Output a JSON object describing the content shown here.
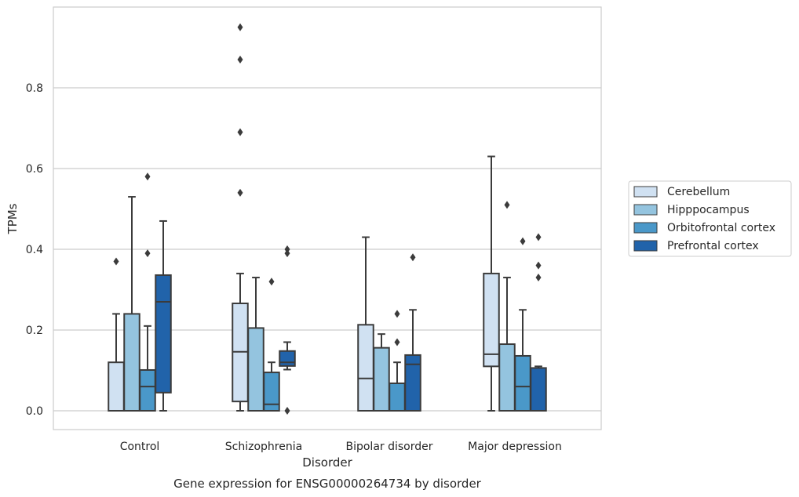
{
  "chart_data": {
    "type": "box",
    "xlabel": "Disorder",
    "ylabel": "TPMs",
    "caption": "Gene expression for ENSG00000264734 by disorder",
    "ylim": [
      -0.045,
      0.99
    ],
    "yticks": [
      0.0,
      0.2,
      0.4,
      0.6,
      0.8
    ],
    "ytick_labels": [
      "0.0",
      "0.2",
      "0.4",
      "0.6",
      "0.8"
    ],
    "grid": "horizontal",
    "legend_position": "outside-right",
    "categories": [
      "Control",
      "Schizophrenia",
      "Bipolar disorder",
      "Major depression"
    ],
    "series": [
      {
        "name": "Cerebellum",
        "color": "#d0e1f2",
        "boxes": [
          {
            "whislo": 0.0,
            "q1": 0.0,
            "med": 0.0,
            "q3": 0.12,
            "whishi": 0.24,
            "fliers": [
              0.37
            ]
          },
          {
            "whislo": 0.0,
            "q1": 0.023,
            "med": 0.146,
            "q3": 0.266,
            "whishi": 0.34,
            "fliers": [
              0.95,
              0.87,
              0.69,
              0.54
            ]
          },
          {
            "whislo": 0.0,
            "q1": 0.0,
            "med": 0.08,
            "q3": 0.213,
            "whishi": 0.43,
            "fliers": []
          },
          {
            "whislo": 0.0,
            "q1": 0.11,
            "med": 0.14,
            "q3": 0.34,
            "whishi": 0.63,
            "fliers": []
          }
        ]
      },
      {
        "name": "Hipppocampus",
        "color": "#94c4df",
        "boxes": [
          {
            "whislo": 0.0,
            "q1": 0.0,
            "med": 0.0,
            "q3": 0.24,
            "whishi": 0.53,
            "fliers": []
          },
          {
            "whislo": 0.0,
            "q1": 0.0,
            "med": 0.0,
            "q3": 0.205,
            "whishi": 0.33,
            "fliers": []
          },
          {
            "whislo": 0.0,
            "q1": 0.0,
            "med": 0.0,
            "q3": 0.156,
            "whishi": 0.19,
            "fliers": []
          },
          {
            "whislo": 0.0,
            "q1": 0.0,
            "med": 0.0,
            "q3": 0.165,
            "whishi": 0.33,
            "fliers": [
              0.51
            ]
          }
        ]
      },
      {
        "name": "Orbitofrontal cortex",
        "color": "#4a98c9",
        "boxes": [
          {
            "whislo": 0.0,
            "q1": 0.0,
            "med": 0.06,
            "q3": 0.101,
            "whishi": 0.21,
            "fliers": [
              0.58,
              0.39
            ]
          },
          {
            "whislo": 0.0,
            "q1": 0.0,
            "med": 0.016,
            "q3": 0.095,
            "whishi": 0.12,
            "fliers": [
              0.32
            ]
          },
          {
            "whislo": 0.0,
            "q1": 0.0,
            "med": 0.0,
            "q3": 0.068,
            "whishi": 0.12,
            "fliers": [
              0.24,
              0.17
            ]
          },
          {
            "whislo": 0.0,
            "q1": 0.0,
            "med": 0.06,
            "q3": 0.136,
            "whishi": 0.25,
            "fliers": [
              0.42
            ]
          }
        ]
      },
      {
        "name": "Prefrontal cortex",
        "color": "#2163aa",
        "boxes": [
          {
            "whislo": 0.0,
            "q1": 0.045,
            "med": 0.27,
            "q3": 0.336,
            "whishi": 0.47,
            "fliers": []
          },
          {
            "whislo": 0.102,
            "q1": 0.111,
            "med": 0.12,
            "q3": 0.148,
            "whishi": 0.17,
            "fliers": [
              0.4,
              0.39,
              0.0
            ]
          },
          {
            "whislo": 0.0,
            "q1": 0.0,
            "med": 0.115,
            "q3": 0.138,
            "whishi": 0.25,
            "fliers": [
              0.38
            ]
          },
          {
            "whislo": 0.0,
            "q1": 0.0,
            "med": 0.0,
            "q3": 0.106,
            "whishi": 0.11,
            "fliers": [
              0.43,
              0.36,
              0.33
            ]
          }
        ]
      }
    ]
  }
}
